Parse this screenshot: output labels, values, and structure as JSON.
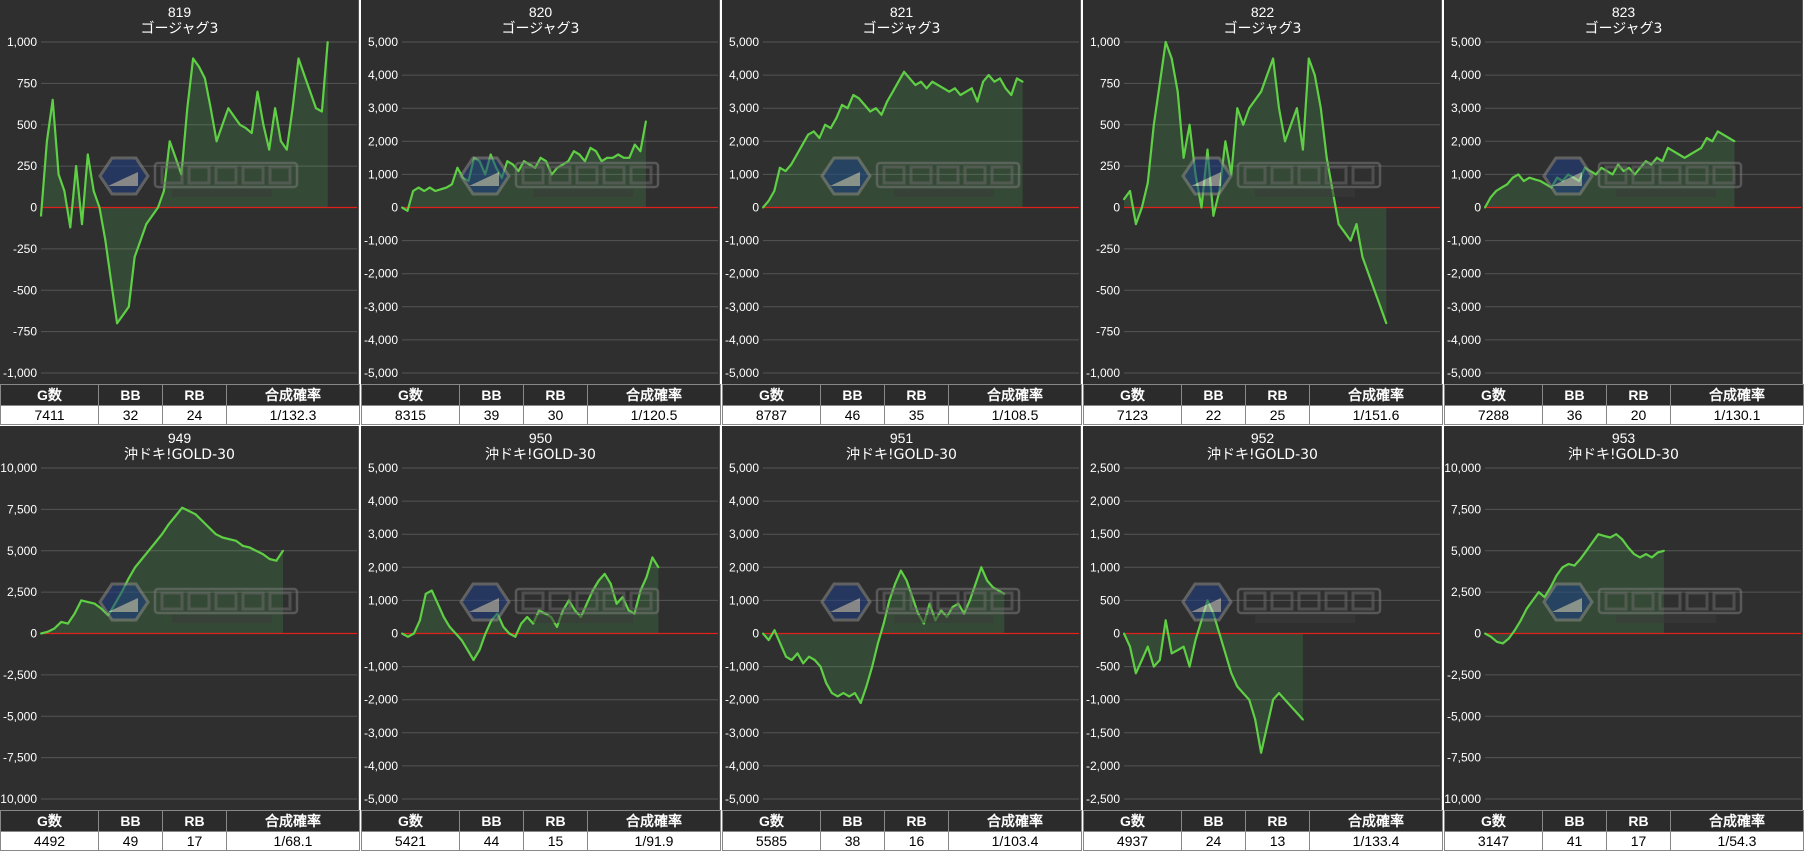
{
  "chart_data": [
    {
      "type": "area",
      "title": "819",
      "subtitle": "ゴージャグ3",
      "ylim": [
        -1000,
        1000
      ],
      "yticks": [
        1000,
        750,
        500,
        250,
        0,
        -250,
        -500,
        -750,
        -1000
      ],
      "x_count": 55,
      "values": [
        -50,
        400,
        650,
        200,
        100,
        -120,
        250,
        -100,
        320,
        100,
        0,
        -200,
        -450,
        -700,
        -650,
        -600,
        -300,
        -200,
        -100,
        -50,
        0,
        100,
        400,
        300,
        200,
        600,
        900,
        850,
        780,
        600,
        400,
        500,
        600,
        550,
        500,
        480,
        450,
        700,
        500,
        350,
        600,
        400,
        350,
        600,
        900,
        800,
        700,
        600,
        580,
        1000
      ],
      "stats": {
        "headers": [
          "G数",
          "BB",
          "RB",
          "合成確率"
        ],
        "values": [
          "7411",
          "32",
          "24",
          "1/132.3"
        ]
      }
    },
    {
      "type": "area",
      "title": "820",
      "subtitle": "ゴージャグ3",
      "ylim": [
        -5000,
        5000
      ],
      "yticks": [
        5000,
        4000,
        3000,
        2000,
        1000,
        0,
        -1000,
        -2000,
        -3000,
        -4000,
        -5000
      ],
      "x_count": 58,
      "values": [
        0,
        -100,
        500,
        600,
        500,
        600,
        500,
        550,
        600,
        700,
        1200,
        900,
        800,
        1500,
        1400,
        1000,
        1600,
        1200,
        900,
        1400,
        1300,
        1100,
        1400,
        1300,
        1200,
        1500,
        1400,
        1000,
        1200,
        1300,
        1400,
        1700,
        1600,
        1400,
        1800,
        1700,
        1400,
        1500,
        1500,
        1600,
        1500,
        1500,
        1900,
        1700,
        2600
      ],
      "stats": {
        "headers": [
          "G数",
          "BB",
          "RB",
          "合成確率"
        ],
        "values": [
          "8315",
          "39",
          "30",
          "1/120.5"
        ]
      }
    },
    {
      "type": "area",
      "title": "821",
      "subtitle": "ゴージャグ3",
      "ylim": [
        -5000,
        5000
      ],
      "yticks": [
        5000,
        4000,
        3000,
        2000,
        1000,
        0,
        -1000,
        -2000,
        -3000,
        -4000,
        -5000
      ],
      "x_count": 57,
      "values": [
        0,
        200,
        500,
        1200,
        1100,
        1300,
        1600,
        1900,
        2200,
        2300,
        2100,
        2500,
        2400,
        2700,
        3100,
        3000,
        3400,
        3300,
        3100,
        2900,
        3000,
        2800,
        3200,
        3500,
        3800,
        4100,
        3900,
        3700,
        3800,
        3600,
        3800,
        3700,
        3600,
        3500,
        3600,
        3400,
        3500,
        3600,
        3200,
        3800,
        4000,
        3800,
        3900,
        3600,
        3400,
        3900,
        3800
      ],
      "stats": {
        "headers": [
          "G数",
          "BB",
          "RB",
          "合成確率"
        ],
        "values": [
          "8787",
          "46",
          "35",
          "1/108.5"
        ]
      }
    },
    {
      "type": "area",
      "title": "822",
      "subtitle": "ゴージャグ3",
      "ylim": [
        -1000,
        1000
      ],
      "yticks": [
        1000,
        750,
        500,
        250,
        0,
        -250,
        -500,
        -750,
        -1000
      ],
      "x_count": 54,
      "values": [
        50,
        100,
        -100,
        0,
        150,
        500,
        750,
        1000,
        900,
        700,
        300,
        500,
        200,
        0,
        350,
        -50,
        100,
        400,
        200,
        600,
        500,
        600,
        650,
        700,
        800,
        900,
        600,
        400,
        500,
        600,
        350,
        900,
        800,
        600,
        300,
        100,
        -100,
        -150,
        -200,
        -100,
        -300,
        -400,
        -500,
        -600,
        -700
      ],
      "stats": {
        "headers": [
          "G数",
          "BB",
          "RB",
          "合成確率"
        ],
        "values": [
          "7123",
          "22",
          "25",
          "1/151.6"
        ]
      }
    },
    {
      "type": "area",
      "title": "823",
      "subtitle": "ゴージャグ3",
      "ylim": [
        -5000,
        5000
      ],
      "yticks": [
        5000,
        4000,
        3000,
        2000,
        1000,
        0,
        -1000,
        -2000,
        -3000,
        -4000,
        -5000
      ],
      "x_count": 58,
      "values": [
        0,
        300,
        500,
        600,
        700,
        900,
        1000,
        800,
        900,
        850,
        800,
        700,
        600,
        900,
        800,
        1000,
        900,
        800,
        1200,
        1100,
        1000,
        1200,
        1100,
        1000,
        1300,
        1100,
        1200,
        1000,
        1200,
        1400,
        1300,
        1500,
        1400,
        1800,
        1700,
        1600,
        1500,
        1600,
        1700,
        1800,
        2100,
        2000,
        2300,
        2200,
        2100,
        2000
      ],
      "stats": {
        "headers": [
          "G数",
          "BB",
          "RB",
          "合成確率"
        ],
        "values": [
          "7288",
          "36",
          "20",
          "1/130.1"
        ]
      }
    },
    {
      "type": "area",
      "title": "949",
      "subtitle": "沖ドキ!GOLD-30",
      "ylim": [
        -10000,
        10000
      ],
      "yticks": [
        10000,
        7500,
        5000,
        2500,
        0,
        -2500,
        -5000,
        -7500,
        -10000
      ],
      "x_count": 48,
      "values": [
        0,
        100,
        300,
        700,
        600,
        1200,
        2000,
        1900,
        1800,
        1500,
        1100,
        1800,
        2500,
        3300,
        4000,
        4500,
        5000,
        5500,
        6000,
        6600,
        7100,
        7600,
        7400,
        7200,
        6800,
        6400,
        6000,
        5800,
        5700,
        5600,
        5300,
        5200,
        5000,
        4800,
        4500,
        4400,
        5000
      ],
      "stats": {
        "headers": [
          "G数",
          "BB",
          "RB",
          "合成確率"
        ],
        "values": [
          "4492",
          "49",
          "17",
          "1/68.1"
        ]
      }
    },
    {
      "type": "area",
      "title": "950",
      "subtitle": "沖ドキ!GOLD-30",
      "ylim": [
        -5000,
        5000
      ],
      "yticks": [
        5000,
        4000,
        3000,
        2000,
        1000,
        0,
        -1000,
        -2000,
        -3000,
        -4000,
        -5000
      ],
      "x_count": 54,
      "values": [
        0,
        -100,
        0,
        400,
        1200,
        1300,
        900,
        500,
        200,
        0,
        -200,
        -500,
        -800,
        -500,
        0,
        400,
        600,
        200,
        0,
        -100,
        300,
        500,
        300,
        700,
        600,
        500,
        200,
        700,
        1000,
        700,
        500,
        900,
        1300,
        1600,
        1800,
        1500,
        900,
        1100,
        700,
        600,
        1300,
        1700,
        2300,
        2000
      ],
      "stats": {
        "headers": [
          "G数",
          "BB",
          "RB",
          "合成確率"
        ],
        "values": [
          "5421",
          "44",
          "15",
          "1/91.9"
        ]
      }
    },
    {
      "type": "area",
      "title": "951",
      "subtitle": "沖ドキ!GOLD-30",
      "ylim": [
        -5000,
        5000
      ],
      "yticks": [
        5000,
        4000,
        3000,
        2000,
        1000,
        0,
        -1000,
        -2000,
        -3000,
        -4000,
        -5000
      ],
      "x_count": 56,
      "values": [
        0,
        -200,
        100,
        -300,
        -700,
        -800,
        -600,
        -900,
        -700,
        -800,
        -1000,
        -1500,
        -1800,
        -1900,
        -1800,
        -1900,
        -1800,
        -2100,
        -1600,
        -1000,
        -300,
        300,
        1000,
        1500,
        1900,
        1600,
        1100,
        600,
        300,
        900,
        400,
        700,
        500,
        800,
        900,
        600,
        1000,
        1500,
        2000,
        1600,
        1400,
        1300,
        1200
      ],
      "stats": {
        "headers": [
          "G数",
          "BB",
          "RB",
          "合成確率"
        ],
        "values": [
          "5585",
          "38",
          "16",
          "1/103.4"
        ]
      }
    },
    {
      "type": "area",
      "title": "952",
      "subtitle": "沖ドキ!GOLD-30",
      "ylim": [
        -2500,
        2500
      ],
      "yticks": [
        2500,
        2000,
        1500,
        1000,
        500,
        0,
        -500,
        -1000,
        -1500,
        -2000,
        -2500
      ],
      "x_count": 54,
      "values": [
        0,
        -200,
        -600,
        -400,
        -200,
        -500,
        -400,
        200,
        -300,
        -250,
        -200,
        -500,
        -100,
        200,
        500,
        300,
        0,
        -300,
        -600,
        -800,
        -900,
        -1000,
        -1300,
        -1800,
        -1400,
        -1000,
        -900,
        -1000,
        -1100,
        -1200,
        -1300
      ],
      "stats": {
        "headers": [
          "G数",
          "BB",
          "RB",
          "合成確率"
        ],
        "values": [
          "4937",
          "24",
          "13",
          "1/133.4"
        ]
      }
    },
    {
      "type": "area",
      "title": "953",
      "subtitle": "沖ドキ!GOLD-30",
      "ylim": [
        -10000,
        10000
      ],
      "yticks": [
        10000,
        7500,
        5000,
        2500,
        0,
        -2500,
        -5000,
        -7500,
        -10000
      ],
      "x_count": 54,
      "values": [
        0,
        -200,
        -500,
        -600,
        -300,
        200,
        800,
        1500,
        2000,
        2500,
        2200,
        2800,
        3500,
        4000,
        4200,
        4100,
        4500,
        5000,
        5500,
        6000,
        5900,
        5800,
        6000,
        5700,
        5200,
        4800,
        4600,
        4800,
        4600,
        4900,
        5000
      ],
      "stats": {
        "headers": [
          "G数",
          "BB",
          "RB",
          "合成確率"
        ],
        "values": [
          "3147",
          "41",
          "17",
          "1/54.3"
        ]
      }
    }
  ]
}
